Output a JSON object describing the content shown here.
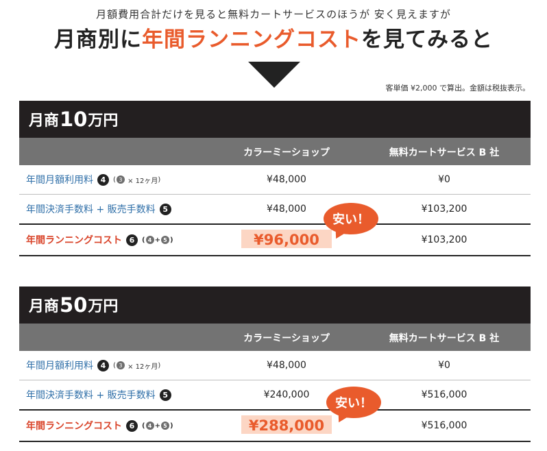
{
  "header": {
    "subtitle": "月額費用合計だけを見ると無料カートサービスのほうが 安く見えますが",
    "headline_pre": "月商別に",
    "headline_accent": "年間ランニングコスト",
    "headline_post": "を見てみると",
    "note": "客単価 ¥2,000 で算出。金額は税抜表示。"
  },
  "columns": {
    "col1": "カラーミーショップ",
    "col2": "無料カートサービス B 社"
  },
  "colors": {
    "accent": "#e95b2c",
    "dark": "#231f20",
    "header_gray": "#737373",
    "link_blue": "#2f6fa8",
    "highlight": "#fcd6c4"
  },
  "sections": [
    {
      "title_prefix": "月商",
      "title_number": "10",
      "title_suffix": "万円",
      "rows": [
        {
          "label": "年間月額利用料",
          "badge": "4",
          "formula_a": "3",
          "formula_op": "× 12ヶ月",
          "col1": "¥48,000",
          "col2": "¥0"
        },
        {
          "label": "年間決済手数料 + 販売手数料",
          "badge": "5",
          "col1": "¥48,000",
          "col2": "¥103,200"
        },
        {
          "label": "年間ランニングコスト",
          "badge": "6",
          "formula_a": "4",
          "formula_op": "+",
          "formula_b": "5",
          "col1": "¥96,000",
          "col2": "¥103,200"
        }
      ],
      "bubble": "安い！"
    },
    {
      "title_prefix": "月商",
      "title_number": "50",
      "title_suffix": "万円",
      "rows": [
        {
          "label": "年間月額利用料",
          "badge": "4",
          "formula_a": "3",
          "formula_op": "× 12ヶ月",
          "col1": "¥48,000",
          "col2": "¥0"
        },
        {
          "label": "年間決済手数料 + 販売手数料",
          "badge": "5",
          "col1": "¥240,000",
          "col2": "¥516,000"
        },
        {
          "label": "年間ランニングコスト",
          "badge": "6",
          "formula_a": "4",
          "formula_op": "+",
          "formula_b": "5",
          "col1": "¥288,000",
          "col2": "¥516,000"
        }
      ],
      "bubble": "安い！"
    }
  ]
}
